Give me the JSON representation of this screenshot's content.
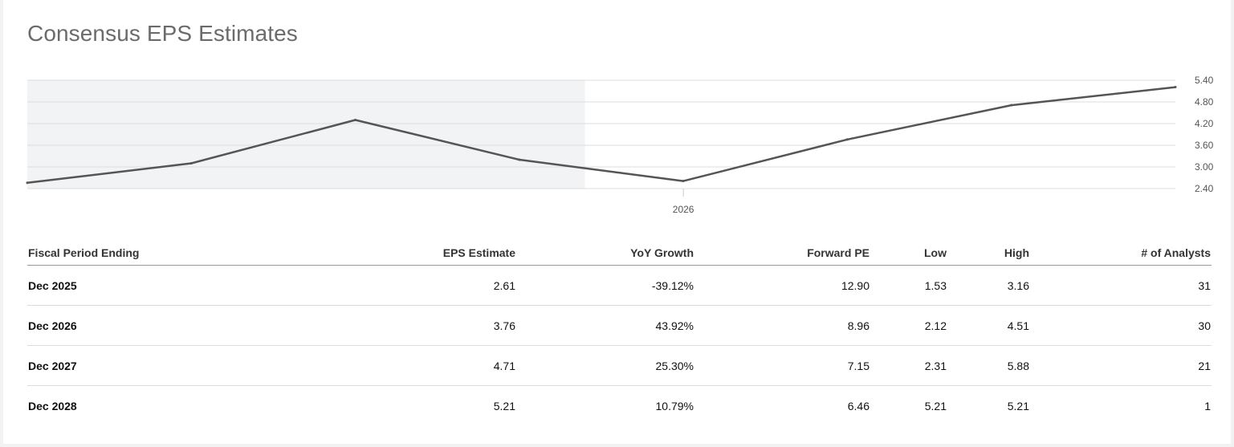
{
  "page": {
    "title": "Consensus EPS Estimates"
  },
  "chart_data": {
    "type": "line",
    "x": [
      2023.0,
      2023.5,
      2024.0,
      2024.5,
      2025.0,
      2025.5,
      2026.0,
      2026.5
    ],
    "values": [
      2.56,
      3.1,
      4.3,
      3.2,
      2.61,
      3.76,
      4.71,
      5.21
    ],
    "xticks": [
      {
        "value": 2025.0,
        "label": "2026"
      }
    ],
    "yticks": [
      "2.40",
      "3.00",
      "3.60",
      "4.20",
      "4.80",
      "5.40"
    ],
    "ylim": [
      2.4,
      5.4
    ],
    "shaded_until": 2024.7,
    "grid": true,
    "colors": {
      "line": "#555555",
      "shade": "#f2f3f5",
      "grid": "#dddddd"
    }
  },
  "table": {
    "headers": [
      "Fiscal Period Ending",
      "EPS Estimate",
      "YoY Growth",
      "Forward PE",
      "Low",
      "High",
      "# of Analysts"
    ],
    "rows": [
      [
        "Dec 2025",
        "2.61",
        "-39.12%",
        "12.90",
        "1.53",
        "3.16",
        "31"
      ],
      [
        "Dec 2026",
        "3.76",
        "43.92%",
        "8.96",
        "2.12",
        "4.51",
        "30"
      ],
      [
        "Dec 2027",
        "4.71",
        "25.30%",
        "7.15",
        "2.31",
        "5.88",
        "21"
      ],
      [
        "Dec 2028",
        "5.21",
        "10.79%",
        "6.46",
        "5.21",
        "5.21",
        "1"
      ]
    ]
  }
}
